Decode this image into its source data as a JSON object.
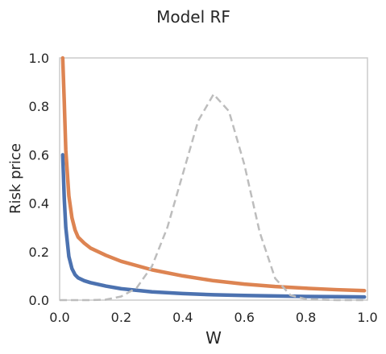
{
  "chart_data": {
    "type": "line",
    "title": "Model RF",
    "xlabel": "W",
    "ylabel": "Risk price",
    "xlim": [
      0.0,
      1.0
    ],
    "ylim": [
      0.0,
      1.0
    ],
    "xticks": [
      "0.0",
      "0.2",
      "0.4",
      "0.6",
      "0.8",
      "1.0"
    ],
    "yticks": [
      "0.0",
      "0.2",
      "0.4",
      "0.6",
      "0.8",
      "1.0"
    ],
    "grid": false,
    "series": [
      {
        "color": "#4c72b0",
        "style": "solid",
        "x": [
          0.01,
          0.015,
          0.02,
          0.03,
          0.04,
          0.05,
          0.06,
          0.08,
          0.1,
          0.15,
          0.2,
          0.3,
          0.4,
          0.5,
          0.6,
          0.7,
          0.8,
          0.9,
          0.99
        ],
        "y": [
          0.6,
          0.42,
          0.3,
          0.18,
          0.13,
          0.105,
          0.092,
          0.08,
          0.072,
          0.058,
          0.047,
          0.034,
          0.027,
          0.022,
          0.019,
          0.017,
          0.015,
          0.014,
          0.013
        ]
      },
      {
        "color": "#dd8452",
        "style": "solid",
        "x": [
          0.01,
          0.015,
          0.02,
          0.03,
          0.04,
          0.05,
          0.06,
          0.08,
          0.1,
          0.15,
          0.2,
          0.3,
          0.4,
          0.5,
          0.6,
          0.7,
          0.8,
          0.9,
          0.99
        ],
        "y": [
          1.0,
          0.82,
          0.62,
          0.43,
          0.34,
          0.29,
          0.26,
          0.235,
          0.215,
          0.185,
          0.16,
          0.125,
          0.1,
          0.08,
          0.066,
          0.056,
          0.049,
          0.043,
          0.039
        ]
      },
      {
        "color": "#bdbdbd",
        "style": "dashed",
        "x": [
          0.0,
          0.1,
          0.15,
          0.2,
          0.25,
          0.3,
          0.35,
          0.4,
          0.45,
          0.5,
          0.55,
          0.6,
          0.65,
          0.7,
          0.75,
          0.8,
          0.9,
          1.0
        ],
        "y": [
          0.0,
          0.0,
          0.002,
          0.015,
          0.05,
          0.14,
          0.3,
          0.52,
          0.74,
          0.85,
          0.78,
          0.56,
          0.28,
          0.09,
          0.02,
          0.004,
          0.0,
          0.0
        ]
      }
    ]
  }
}
